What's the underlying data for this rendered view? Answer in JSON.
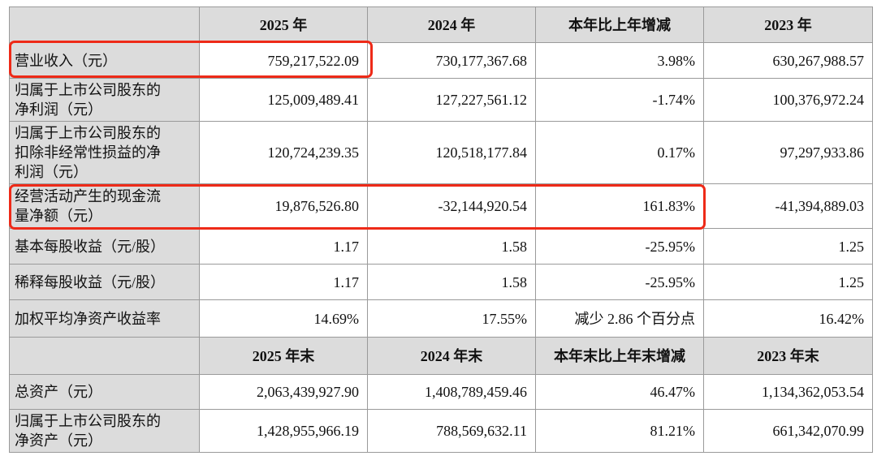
{
  "header1": [
    "2025 年",
    "2024 年",
    "本年比上年增减",
    "2023 年"
  ],
  "rows1": [
    {
      "label": [
        "营业收入（元）"
      ],
      "values": [
        "759,217,522.09",
        "730,177,367.68",
        "3.98%",
        "630,267,988.57"
      ]
    },
    {
      "label": [
        "归属于上市公司股东的",
        "净利润（元）"
      ],
      "values": [
        "125,009,489.41",
        "127,227,561.12",
        "-1.74%",
        "100,376,972.24"
      ]
    },
    {
      "label": [
        "归属于上市公司股东的",
        "扣除非经常性损益的净",
        "利润（元）"
      ],
      "values": [
        "120,724,239.35",
        "120,518,177.84",
        "0.17%",
        "97,297,933.86"
      ]
    },
    {
      "label": [
        "经营活动产生的现金流",
        "量净额（元）"
      ],
      "values": [
        "19,876,526.80",
        "-32,144,920.54",
        "161.83%",
        "-41,394,889.03"
      ]
    },
    {
      "label": [
        "基本每股收益（元/股）"
      ],
      "values": [
        "1.17",
        "1.58",
        "-25.95%",
        "1.25"
      ]
    },
    {
      "label": [
        "稀释每股收益（元/股）"
      ],
      "values": [
        "1.17",
        "1.58",
        "-25.95%",
        "1.25"
      ]
    },
    {
      "label": [
        "加权平均净资产收益率"
      ],
      "values": [
        "14.69%",
        "17.55%",
        "减少 2.86 个百分点",
        "16.42%"
      ]
    }
  ],
  "header2": [
    "2025 年末",
    "2024 年末",
    "本年末比上年末增减",
    "2023 年末"
  ],
  "rows2": [
    {
      "label": [
        "总资产（元）"
      ],
      "values": [
        "2,063,439,927.90",
        "1,408,789,459.46",
        "46.47%",
        "1,134,362,053.54"
      ]
    },
    {
      "label": [
        "归属于上市公司股东的",
        "净资产（元）"
      ],
      "values": [
        "1,428,955,966.19",
        "788,569,632.11",
        "81.21%",
        "661,342,070.99"
      ]
    }
  ],
  "highlight_color": "#ee2a18"
}
